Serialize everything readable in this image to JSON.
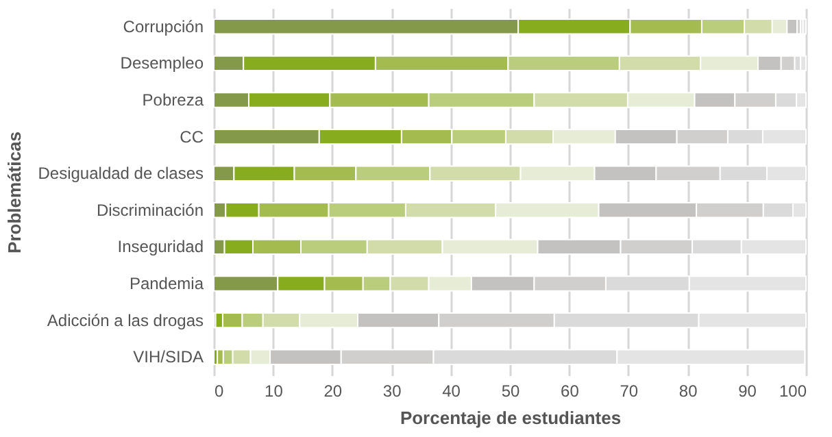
{
  "chart_data": {
    "type": "bar",
    "orientation": "horizontal",
    "stacked": true,
    "xlabel": "Porcentaje de estudiantes",
    "ylabel": "Problemáticas",
    "categories": [
      "Corrupción",
      "Desempleo",
      "Pobreza",
      "CC",
      "Desigualdad de clases",
      "Discriminación",
      "Inseguridad",
      "Pandemia",
      "Adicción a las drogas",
      "VIH/SIDA"
    ],
    "xlim": [
      0,
      100
    ],
    "xticks": [
      0,
      10,
      20,
      30,
      40,
      50,
      60,
      70,
      80,
      90,
      100
    ],
    "grid": "x",
    "legend": false,
    "series": [
      {
        "color": "#84994a",
        "values": [
          51.4,
          5.0,
          5.9,
          17.8,
          3.4,
          2.0,
          1.8,
          10.8,
          0.3,
          null
        ]
      },
      {
        "color": "#87ad1f",
        "values": [
          18.9,
          22.3,
          13.7,
          13.9,
          10.2,
          5.6,
          4.8,
          7.9,
          1.2,
          0.6
        ]
      },
      {
        "color": "#a3bb4f",
        "values": [
          12.1,
          22.4,
          16.7,
          8.5,
          10.4,
          11.8,
          8.1,
          6.5,
          3.3,
          1.0
        ]
      },
      {
        "color": "#bacd7c",
        "values": [
          7.2,
          18.8,
          17.8,
          9.1,
          12.5,
          13.0,
          11.2,
          4.6,
          3.5,
          1.6
        ]
      },
      {
        "color": "#d1dcaa",
        "values": [
          4.7,
          13.7,
          15.8,
          8.0,
          15.3,
          15.2,
          12.7,
          6.5,
          6.2,
          3.0
        ]
      },
      {
        "color": "#e6ecd6",
        "values": [
          2.5,
          9.7,
          11.3,
          10.5,
          12.5,
          17.4,
          16.1,
          7.2,
          9.8,
          3.3
        ]
      },
      {
        "color": "#c3c2c1",
        "values": [
          1.7,
          3.9,
          6.8,
          10.4,
          10.4,
          16.5,
          14.0,
          10.6,
          13.7,
          12.0
        ]
      },
      {
        "color": "#d0cfce",
        "values": [
          0.6,
          2.3,
          6.9,
          8.6,
          10.8,
          11.3,
          12.1,
          12.1,
          19.5,
          15.6
        ]
      },
      {
        "color": "#dbdada",
        "values": [
          0.4,
          1.0,
          3.5,
          5.9,
          7.9,
          5.0,
          8.3,
          14.1,
          24.4,
          31.0
        ]
      },
      {
        "color": "#e5e4e4",
        "values": [
          0.5,
          0.9,
          1.6,
          7.3,
          6.6,
          2.2,
          10.9,
          19.7,
          18.1,
          31.7
        ]
      }
    ]
  }
}
